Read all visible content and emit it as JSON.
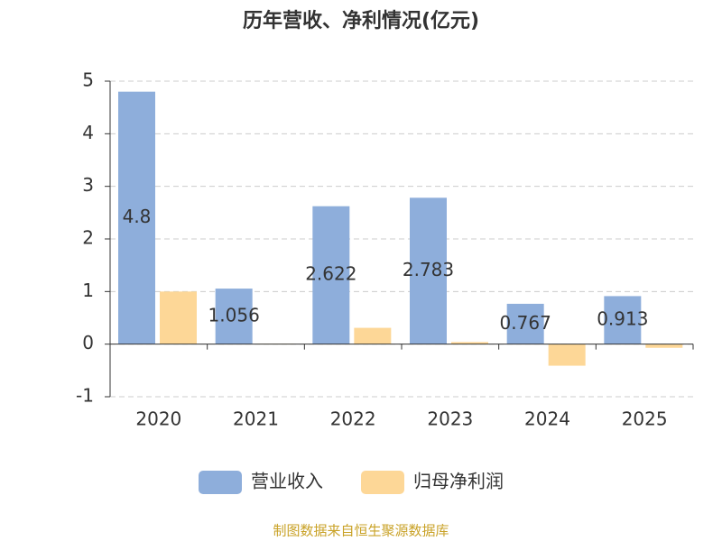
{
  "chart_data": {
    "type": "bar",
    "title": "历年营收、净利情况(亿元)",
    "categories": [
      "2020",
      "2021",
      "2022",
      "2023",
      "2024",
      "2025"
    ],
    "series": [
      {
        "name": "营业收入",
        "color": "#8eaedb",
        "values": [
          4.8,
          1.056,
          2.622,
          2.783,
          0.767,
          0.913
        ],
        "show_labels": true
      },
      {
        "name": "归母净利润",
        "color": "#fdd797",
        "values": [
          1.0,
          0.01,
          0.31,
          0.04,
          -0.41,
          -0.07
        ],
        "show_labels": false
      }
    ],
    "ylim": [
      -1,
      5
    ],
    "yticks": [
      -1,
      0,
      1,
      2,
      3,
      4,
      5
    ],
    "grid": true,
    "legend": "bottom",
    "source": "制图数据来自恒生聚源数据库"
  }
}
